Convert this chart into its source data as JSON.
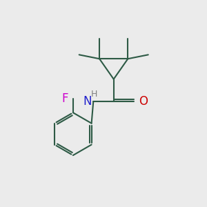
{
  "background_color": "#ebebeb",
  "bond_color": "#2d5a45",
  "line_width": 1.5,
  "atom_colors": {
    "N": "#2020cc",
    "O": "#cc0000",
    "F": "#cc00cc",
    "H": "#808080",
    "C": "#2d5a45"
  },
  "font_size": 10,
  "fig_size": [
    3.0,
    3.0
  ],
  "dpi": 100
}
